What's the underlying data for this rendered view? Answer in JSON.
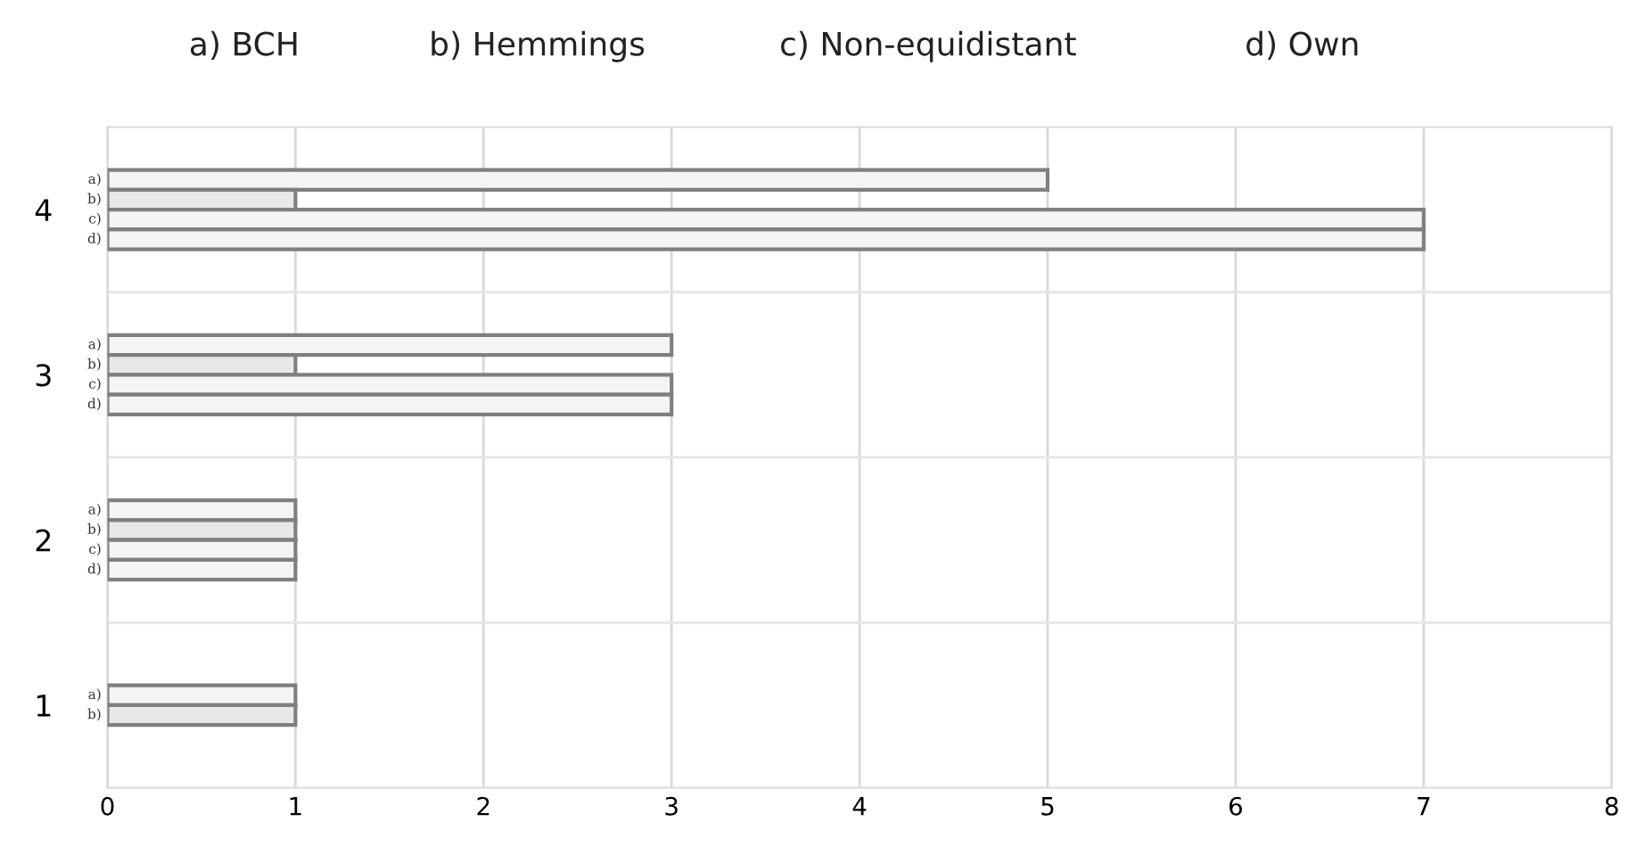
{
  "chart_data": {
    "type": "bar",
    "orientation": "horizontal",
    "categories": [
      "4",
      "3",
      "2",
      "1"
    ],
    "series": [
      {
        "name": "a)",
        "color": "#f4f4f4",
        "values": [
          5,
          3,
          1,
          1
        ]
      },
      {
        "name": "b)",
        "color": "#e8e8e8",
        "values": [
          1,
          1,
          1,
          1
        ]
      },
      {
        "name": "c)",
        "color": "#f4f4f4",
        "values": [
          7,
          3,
          1,
          null
        ]
      },
      {
        "name": "d)",
        "color": "#f4f4f4",
        "values": [
          7,
          3,
          1,
          null
        ]
      }
    ],
    "xlim": [
      0,
      8
    ],
    "xticks": [
      0,
      1,
      2,
      3,
      4,
      5,
      6,
      7,
      8
    ],
    "grid": true,
    "legend": false,
    "annotations": [
      "a) BCH",
      "b) Hemmings",
      "c) Non-equidistant",
      "d) Own"
    ]
  }
}
